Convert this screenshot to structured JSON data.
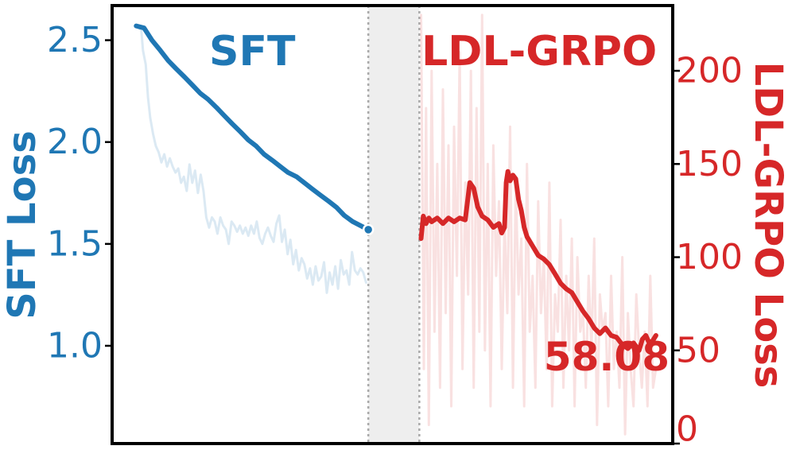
{
  "chart_data": {
    "type": "line",
    "colors": {
      "sft": "#1f77b4",
      "grpo": "#d62728",
      "gap": "#eeeeee"
    },
    "grid": false,
    "xaxis": {
      "ticks_visible": false,
      "range": [
        0,
        100
      ]
    },
    "yaxis_left": {
      "label": "SFT Loss",
      "range": [
        0.52,
        2.67
      ],
      "ticks": [
        1.0,
        1.5,
        2.0,
        2.5
      ],
      "tick_labels": [
        "1.0",
        "1.5",
        "2.0",
        "2.5"
      ]
    },
    "yaxis_right": {
      "label": "LDL-GRPO Loss",
      "range": [
        0,
        235
      ],
      "ticks": [
        0,
        50,
        100,
        150,
        200
      ],
      "tick_labels": [
        "0",
        "50",
        "100",
        "150",
        "200"
      ]
    },
    "phases": [
      {
        "label": "SFT",
        "x_range": [
          0,
          45.7
        ]
      },
      {
        "label": "LDL-GRPO",
        "x_range": [
          54.8,
          100
        ]
      }
    ],
    "gap_region": [
      45.7,
      54.8
    ],
    "final_value_label": "58.08",
    "series": [
      {
        "axis": "left",
        "kind": "raw",
        "phase": "SFT",
        "x": [
          4.3,
          5.2,
          5.5,
          6.0,
          6.4,
          6.8,
          7.3,
          7.8,
          8.3,
          8.8,
          9.3,
          9.8,
          10.3,
          10.8,
          11.3,
          11.8,
          12.3,
          12.8,
          13.3,
          13.8,
          14.3,
          14.8,
          15.3,
          15.8,
          16.3,
          16.8,
          17.3,
          17.8,
          18.3,
          18.8,
          19.3,
          19.8,
          20.3,
          20.8,
          21.3,
          21.8,
          22.3,
          22.8,
          23.3,
          23.8,
          24.3,
          24.8,
          25.3,
          25.8,
          26.3,
          26.8,
          27.3,
          27.8,
          28.3,
          28.8,
          29.3,
          29.8,
          30.3,
          30.8,
          31.3,
          31.8,
          32.3,
          32.8,
          33.3,
          33.8,
          34.3,
          34.8,
          35.3,
          35.8,
          36.3,
          36.8,
          37.3,
          37.8,
          38.3,
          38.8,
          39.3,
          39.8,
          40.3,
          40.8,
          41.3,
          41.8,
          42.3,
          42.8,
          43.3,
          43.8,
          44.3,
          44.8,
          45.3
        ],
        "y": [
          2.57,
          2.55,
          2.45,
          2.38,
          2.22,
          2.12,
          2.04,
          1.98,
          1.95,
          1.9,
          1.94,
          1.88,
          1.92,
          1.88,
          1.85,
          1.87,
          1.8,
          1.83,
          1.76,
          1.89,
          1.8,
          1.86,
          1.75,
          1.84,
          1.76,
          1.63,
          1.58,
          1.63,
          1.61,
          1.55,
          1.63,
          1.59,
          1.57,
          1.5,
          1.61,
          1.59,
          1.56,
          1.59,
          1.55,
          1.58,
          1.54,
          1.59,
          1.55,
          1.61,
          1.53,
          1.5,
          1.55,
          1.58,
          1.54,
          1.51,
          1.6,
          1.64,
          1.51,
          1.57,
          1.45,
          1.52,
          1.4,
          1.47,
          1.37,
          1.43,
          1.4,
          1.33,
          1.38,
          1.3,
          1.39,
          1.32,
          1.34,
          1.41,
          1.26,
          1.36,
          1.3,
          1.39,
          1.28,
          1.42,
          1.35,
          1.37,
          1.3,
          1.46,
          1.37,
          1.35,
          1.38,
          1.36,
          1.31
        ]
      },
      {
        "axis": "left",
        "kind": "smoothed",
        "phase": "SFT",
        "x": [
          4.3,
          5.7,
          7.1,
          8.6,
          10.0,
          11.4,
          12.9,
          14.3,
          15.7,
          17.1,
          18.6,
          20.0,
          21.4,
          22.9,
          24.3,
          25.7,
          27.1,
          28.6,
          30.0,
          31.4,
          32.9,
          34.3,
          35.7,
          37.1,
          38.6,
          40.0,
          41.4,
          42.9,
          44.3,
          45.7
        ],
        "y": [
          2.57,
          2.56,
          2.5,
          2.45,
          2.4,
          2.36,
          2.32,
          2.28,
          2.24,
          2.21,
          2.17,
          2.13,
          2.09,
          2.05,
          2.01,
          1.98,
          1.94,
          1.91,
          1.88,
          1.85,
          1.83,
          1.8,
          1.77,
          1.74,
          1.71,
          1.68,
          1.64,
          1.61,
          1.59,
          1.57
        ]
      },
      {
        "axis": "right",
        "kind": "raw",
        "phase": "LDL-GRPO",
        "x": [
          55.1,
          55.6,
          56.0,
          56.5,
          57.0,
          57.5,
          58.0,
          58.5,
          59.0,
          59.5,
          60.0,
          60.5,
          61.0,
          61.5,
          62.0,
          62.5,
          63.0,
          63.5,
          64.0,
          64.5,
          65.0,
          65.5,
          66.0,
          66.5,
          67.0,
          67.5,
          68.0,
          68.5,
          69.0,
          69.5,
          70.0,
          70.5,
          71.0,
          71.5,
          72.0,
          72.5,
          73.0,
          73.5,
          74.0,
          74.5,
          75.0,
          75.5,
          76.0,
          76.5,
          77.0,
          77.5,
          78.0,
          78.5,
          79.0,
          79.5,
          80.0,
          80.5,
          81.0,
          81.5,
          82.0,
          82.5,
          83.0,
          83.5,
          84.0,
          84.5,
          85.0,
          85.5,
          86.0,
          86.5,
          87.0,
          87.5,
          88.0,
          88.5,
          89.0,
          89.5,
          90.0,
          90.5,
          91.0,
          91.5,
          92.0,
          92.5,
          93.0,
          93.5,
          94.0,
          94.5,
          95.0,
          95.5,
          96.0,
          96.5,
          97.0
        ],
        "y": [
          230,
          40,
          180,
          10,
          200,
          60,
          150,
          30,
          190,
          70,
          160,
          20,
          170,
          90,
          210,
          40,
          140,
          80,
          200,
          30,
          180,
          60,
          230,
          50,
          150,
          20,
          160,
          90,
          130,
          40,
          120,
          70,
          170,
          30,
          140,
          80,
          110,
          20,
          150,
          60,
          90,
          30,
          130,
          70,
          100,
          40,
          140,
          20,
          80,
          60,
          120,
          30,
          90,
          50,
          110,
          20,
          100,
          60,
          70,
          30,
          90,
          50,
          110,
          10,
          80,
          60,
          70,
          20,
          90,
          40,
          60,
          30,
          100,
          5,
          70,
          40,
          20,
          80,
          50,
          30,
          60,
          20,
          90,
          30,
          40
        ]
      },
      {
        "axis": "right",
        "kind": "smoothed",
        "phase": "LDL-GRPO",
        "x": [
          55.1,
          55.5,
          56.0,
          56.5,
          57.0,
          58.0,
          59.0,
          60.0,
          61.0,
          62.0,
          63.0,
          63.8,
          64.5,
          65.2,
          66.0,
          67.0,
          68.0,
          69.0,
          69.5,
          70.0,
          70.3,
          70.6,
          71.0,
          71.5,
          72.0,
          72.5,
          73.0,
          73.5,
          74.0,
          75.0,
          76.0,
          77.0,
          78.0,
          79.0,
          80.0,
          81.0,
          82.0,
          83.0,
          84.0,
          85.0,
          86.0,
          87.0,
          88.0,
          89.0,
          90.0,
          91.0,
          92.0,
          93.0,
          94.0,
          94.6,
          95.2,
          95.8,
          96.4,
          97.0
        ],
        "y": [
          110,
          122,
          118,
          121,
          119,
          121,
          118,
          121,
          119,
          121,
          120,
          140,
          137,
          127,
          122,
          120,
          116,
          118,
          113,
          116,
          140,
          146,
          141,
          144,
          142,
          131,
          125,
          116,
          111,
          106,
          101,
          99,
          96,
          91,
          86,
          83,
          81,
          76,
          71,
          67,
          62,
          59,
          62,
          58,
          57,
          53,
          51,
          54,
          50,
          56,
          58,
          54,
          55,
          58
        ]
      }
    ]
  }
}
